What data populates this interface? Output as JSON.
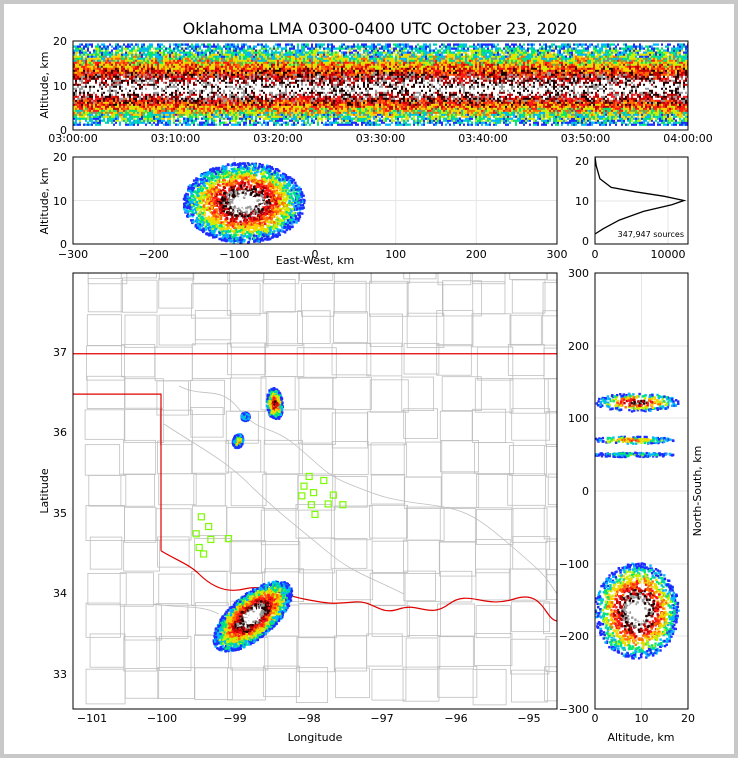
{
  "title": "Oklahoma LMA 0300-0400 UTC October 23, 2020",
  "colors": {
    "border": "#c8c8c8",
    "state_line": "#e00000",
    "county_line": "#bfbfbf",
    "station": "#7cfc00",
    "colormap": [
      "#1e2cff",
      "#00b7ff",
      "#00e67a",
      "#c8f000",
      "#ffd000",
      "#ff6a00",
      "#ff1a1a",
      "#c00000",
      "#200000",
      "#9a9a9a",
      "#ffffff"
    ]
  },
  "source_count_label": "347,947 sources",
  "panels": {
    "time_height": {
      "ylabel": "Altitude, km",
      "yticks": [
        "0",
        "10",
        "20"
      ],
      "xticks": [
        "03:00:00",
        "03:10:00",
        "03:20:00",
        "03:30:00",
        "03:40:00",
        "03:50:00",
        "04:00:00"
      ]
    },
    "ew_height": {
      "ylabel": "Altitude, km",
      "xlabel": "East-West, km",
      "yticks": [
        "0",
        "10",
        "20"
      ],
      "xticks": [
        "−300",
        "−200",
        "−100",
        "0",
        "100",
        "200",
        "300"
      ]
    },
    "histogram": {
      "yticks": [
        "0",
        "10",
        "20"
      ],
      "xticks": [
        "0",
        "10000"
      ]
    },
    "plan": {
      "xlabel": "Longitude",
      "ylabel": "Latitude",
      "xticks": [
        "−101",
        "−100",
        "−99",
        "−98",
        "−97",
        "−96",
        "−95"
      ],
      "yticks": [
        "33",
        "34",
        "35",
        "36",
        "37"
      ]
    },
    "ns_height": {
      "xlabel": "Altitude, km",
      "ylabel": "North-South, km",
      "xticks": [
        "0",
        "10",
        "20"
      ],
      "yticks": [
        "−300",
        "−200",
        "−100",
        "0",
        "100",
        "200",
        "300"
      ]
    }
  },
  "chart_data": [
    {
      "type": "heatmap",
      "name": "time-height source density",
      "x": [
        "03:00:00",
        "03:10:00",
        "03:20:00",
        "03:30:00",
        "03:40:00",
        "03:50:00",
        "04:00:00"
      ],
      "xlim": [
        "03:00:00",
        "04:00:00"
      ],
      "ylim": [
        0,
        20
      ],
      "ylabel": "Altitude, km",
      "core_altitude_km": 9,
      "layer_top_km": 19,
      "layer_bottom_km": 1
    },
    {
      "type": "heatmap",
      "name": "east-west vs altitude",
      "xlim": [
        -300,
        300
      ],
      "ylim": [
        0,
        20
      ],
      "xlabel": "East-West, km",
      "ylabel": "Altitude, km",
      "cells": [
        {
          "x_center": -88,
          "z_center": 9.5,
          "x_span": [
            -170,
            -20
          ],
          "z_span": [
            1.5,
            20
          ]
        }
      ]
    },
    {
      "type": "line",
      "name": "source altitude distribution",
      "xlim": [
        0,
        11500
      ],
      "ylim": [
        0,
        20
      ],
      "points": [
        [
          0,
          20
        ],
        [
          150,
          18
        ],
        [
          600,
          15
        ],
        [
          2000,
          13
        ],
        [
          5000,
          12
        ],
        [
          8500,
          11
        ],
        [
          11000,
          10
        ],
        [
          9500,
          9
        ],
        [
          6000,
          7.5
        ],
        [
          3000,
          5.5
        ],
        [
          1000,
          3.5
        ],
        [
          0,
          2.3
        ]
      ]
    },
    {
      "type": "heatmap",
      "name": "plan view",
      "xlim": [
        -101.2,
        -94.6
      ],
      "ylim": [
        32.6,
        38.0
      ],
      "xlabel": "Longitude",
      "ylabel": "Latitude",
      "cells": [
        {
          "lon": -98.75,
          "lat": 33.75,
          "strength": 1.0
        },
        {
          "lon": -98.45,
          "lat": 36.38,
          "strength": 0.75
        },
        {
          "lon": -98.95,
          "lat": 35.92,
          "strength": 0.5
        },
        {
          "lon": -98.85,
          "lat": 36.22,
          "strength": 0.2
        }
      ],
      "stations": [
        {
          "lon": -97.98,
          "lat": 35.48
        },
        {
          "lon": -97.78,
          "lat": 35.43
        },
        {
          "lon": -98.05,
          "lat": 35.36
        },
        {
          "lon": -97.92,
          "lat": 35.28
        },
        {
          "lon": -98.08,
          "lat": 35.24
        },
        {
          "lon": -97.65,
          "lat": 35.25
        },
        {
          "lon": -97.95,
          "lat": 35.13
        },
        {
          "lon": -97.72,
          "lat": 35.14
        },
        {
          "lon": -97.52,
          "lat": 35.13
        },
        {
          "lon": -97.9,
          "lat": 35.01
        },
        {
          "lon": -99.45,
          "lat": 34.98
        },
        {
          "lon": -99.35,
          "lat": 34.86
        },
        {
          "lon": -99.52,
          "lat": 34.77
        },
        {
          "lon": -99.32,
          "lat": 34.7
        },
        {
          "lon": -99.08,
          "lat": 34.71
        },
        {
          "lon": -99.48,
          "lat": 34.6
        },
        {
          "lon": -99.42,
          "lat": 34.52
        }
      ]
    },
    {
      "type": "heatmap",
      "name": "altitude vs north-south",
      "xlim": [
        0,
        20
      ],
      "ylim": [
        -300,
        300
      ],
      "xlabel": "Altitude, km",
      "ylabel": "North-South, km",
      "cells": [
        {
          "z_center": 9,
          "y_center": -165,
          "y_span": [
            -232,
            -100
          ],
          "strength": 1.0
        },
        {
          "z_center": 9,
          "y_center": 122,
          "y_span": [
            110,
            135
          ],
          "strength": 0.7
        },
        {
          "z_center": 8,
          "y_center": 70,
          "y_span": [
            65,
            75
          ],
          "strength": 0.45
        },
        {
          "z_center": 8,
          "y_center": 50,
          "y_span": [
            47,
            53
          ],
          "strength": 0.2
        }
      ]
    }
  ]
}
